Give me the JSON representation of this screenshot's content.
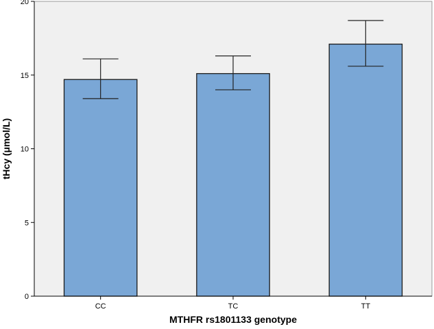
{
  "chart_data": {
    "type": "bar",
    "categories": [
      "CC",
      "TC",
      "TT"
    ],
    "values": [
      14.7,
      15.1,
      17.1
    ],
    "error_bars": {
      "lower": [
        13.4,
        14.0,
        15.6
      ],
      "upper": [
        16.1,
        16.3,
        18.7
      ]
    },
    "xlabel": "MTHFR rs1801133 genotype",
    "ylabel": "tHcy (μmol/L)",
    "ylim": [
      0,
      20
    ],
    "yticks": [
      "0",
      "5",
      "10",
      "15",
      "20"
    ],
    "grid": false,
    "colors": {
      "bar_fill": "#7AA7D6",
      "bar_stroke": "#1A1A1A",
      "plot_background": "#F0F0F0",
      "axis": "#000000"
    }
  }
}
